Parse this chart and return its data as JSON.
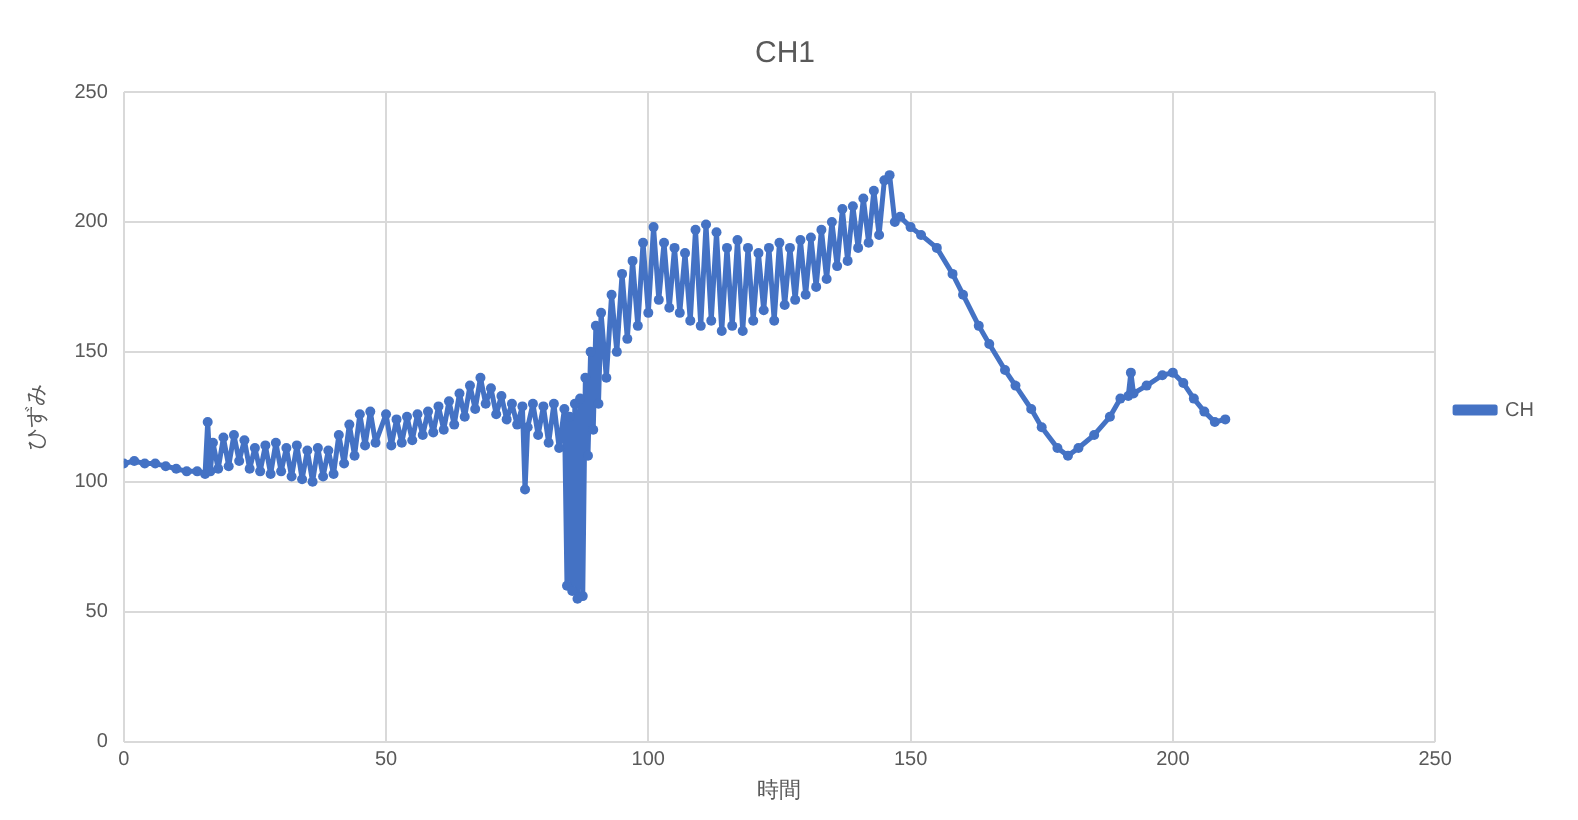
{
  "chart_data": {
    "type": "line",
    "title": "CH1",
    "xlabel": "時間",
    "ylabel": "ひずみ",
    "xlim": [
      0,
      250
    ],
    "xticks": [
      0,
      50,
      100,
      150,
      200,
      250
    ],
    "ylim": [
      0,
      250
    ],
    "yticks": [
      0,
      50,
      100,
      150,
      200,
      250
    ],
    "grid": true,
    "legend": "right",
    "marker": "circle",
    "line_style": "solid",
    "series": [
      {
        "name": "CH",
        "color": "#4472c4",
        "x": [
          0,
          2,
          4,
          6,
          8,
          10,
          12,
          14,
          15.5,
          16,
          16.5,
          17,
          18,
          19,
          20,
          21,
          22,
          23,
          24,
          25,
          26,
          27,
          28,
          29,
          30,
          31,
          32,
          33,
          34,
          35,
          36,
          37,
          38,
          39,
          40,
          41,
          42,
          43,
          44,
          45,
          46,
          47,
          48,
          50,
          51,
          52,
          53,
          54,
          55,
          56,
          57,
          58,
          59,
          60,
          61,
          62,
          63,
          64,
          65,
          66,
          67,
          68,
          69,
          70,
          71,
          72,
          73,
          74,
          75,
          76,
          76.5,
          77,
          78,
          79,
          80,
          81,
          82,
          83,
          84,
          84.5,
          85,
          85.5,
          86,
          86.5,
          87,
          87.5,
          88,
          88.5,
          89,
          89.5,
          90,
          90.5,
          91,
          92,
          93,
          94,
          95,
          96,
          97,
          98,
          99,
          100,
          101,
          102,
          103,
          104,
          105,
          106,
          107,
          108,
          109,
          110,
          111,
          112,
          113,
          114,
          115,
          116,
          117,
          118,
          119,
          120,
          121,
          122,
          123,
          124,
          125,
          126,
          127,
          128,
          129,
          130,
          131,
          132,
          133,
          134,
          135,
          136,
          137,
          138,
          139,
          140,
          141,
          142,
          143,
          144,
          145,
          146,
          147,
          148,
          150,
          152,
          155,
          158,
          160,
          163,
          165,
          168,
          170,
          173,
          175,
          178,
          180,
          182,
          185,
          188,
          190,
          191.5,
          192,
          192.5,
          195,
          198,
          200,
          202,
          204,
          206,
          208,
          210
        ],
        "values": [
          107,
          108,
          107,
          107,
          106,
          105,
          104,
          104,
          103,
          123,
          104,
          115,
          105,
          117,
          106,
          118,
          108,
          116,
          105,
          113,
          104,
          114,
          103,
          115,
          104,
          113,
          102,
          114,
          101,
          112,
          100,
          113,
          102,
          112,
          103,
          118,
          107,
          122,
          110,
          126,
          114,
          127,
          115,
          126,
          114,
          124,
          115,
          125,
          116,
          126,
          118,
          127,
          119,
          129,
          120,
          131,
          122,
          134,
          125,
          137,
          128,
          140,
          130,
          136,
          126,
          133,
          124,
          130,
          122,
          129,
          97,
          121,
          130,
          118,
          129,
          115,
          130,
          113,
          128,
          60,
          125,
          58,
          130,
          55,
          132,
          56,
          140,
          110,
          150,
          120,
          160,
          130,
          165,
          140,
          172,
          150,
          180,
          155,
          185,
          160,
          192,
          165,
          198,
          170,
          192,
          167,
          190,
          165,
          188,
          162,
          197,
          160,
          199,
          162,
          196,
          158,
          190,
          160,
          193,
          158,
          190,
          162,
          188,
          166,
          190,
          162,
          192,
          168,
          190,
          170,
          193,
          172,
          194,
          175,
          197,
          178,
          200,
          183,
          205,
          185,
          206,
          190,
          209,
          192,
          212,
          195,
          216,
          218,
          200,
          202,
          198,
          195,
          190,
          180,
          172,
          160,
          153,
          143,
          137,
          128,
          121,
          113,
          110,
          113,
          118,
          125,
          132,
          133,
          142,
          134,
          137,
          141,
          142,
          138,
          132,
          127,
          123,
          124
        ]
      }
    ]
  }
}
